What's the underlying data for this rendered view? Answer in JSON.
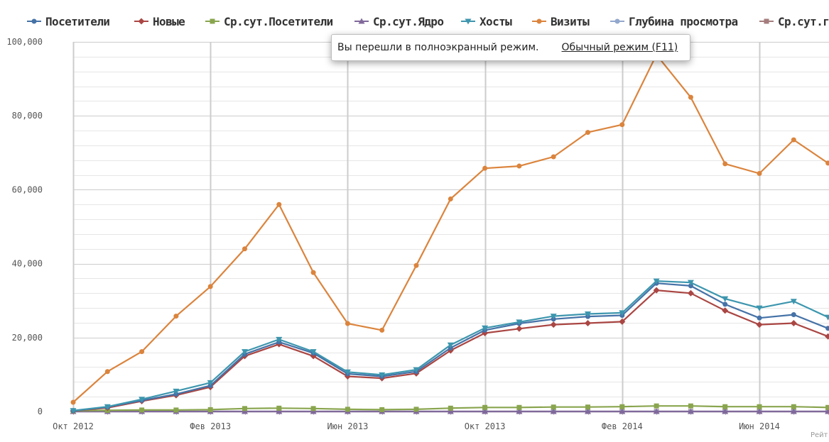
{
  "colors": {
    "background": "#ffffff",
    "grid_major": "#cccccc",
    "grid_minor": "#e6e6e6",
    "axis_text": "#555555"
  },
  "toast": {
    "message": "Вы перешли в полноэкранный режим.",
    "link": "Обычный режим (F11)"
  },
  "credit": "Рейт",
  "chart_data": {
    "type": "line",
    "x": [
      "2012-10",
      "2012-11",
      "2012-12",
      "2013-01",
      "2013-02",
      "2013-03",
      "2013-04",
      "2013-05",
      "2013-06",
      "2013-07",
      "2013-08",
      "2013-09",
      "2013-10",
      "2013-11",
      "2013-12",
      "2014-01",
      "2014-02",
      "2014-03",
      "2014-04",
      "2014-05",
      "2014-06",
      "2014-07",
      "2014-08"
    ],
    "x_tick_labels": [
      {
        "x": "2012-10",
        "label": "Окт 2012"
      },
      {
        "x": "2013-02",
        "label": "Фев 2013"
      },
      {
        "x": "2013-06",
        "label": "Июн 2013"
      },
      {
        "x": "2013-10",
        "label": "Окт 2013"
      },
      {
        "x": "2014-02",
        "label": "Фев 2014"
      },
      {
        "x": "2014-06",
        "label": "Июн 2014"
      }
    ],
    "ylim": [
      0,
      100000
    ],
    "y_tick_labels": [
      "0",
      "20,000",
      "40,000",
      "60,000",
      "80,000",
      "100,000"
    ],
    "grid": true,
    "legend_position": "top",
    "series": [
      {
        "name": "Посетители",
        "color": "#4572A7",
        "marker": "circle",
        "values": [
          200,
          1200,
          3000,
          4700,
          7000,
          15500,
          18800,
          15800,
          10200,
          9500,
          10800,
          17200,
          22000,
          23800,
          25000,
          25700,
          26000,
          34700,
          34000,
          29000,
          25300,
          26200,
          22500
        ]
      },
      {
        "name": "Новые",
        "color": "#AA4643",
        "marker": "diamond",
        "values": [
          150,
          1000,
          2800,
          4400,
          6600,
          15000,
          18200,
          15000,
          9500,
          9000,
          10300,
          16500,
          21200,
          22400,
          23500,
          23900,
          24300,
          32800,
          32000,
          27300,
          23500,
          23900,
          20300
        ]
      },
      {
        "name": "Ср.сут.Посетители",
        "color": "#89A54E",
        "marker": "square",
        "values": [
          200,
          300,
          400,
          400,
          500,
          800,
          900,
          800,
          600,
          500,
          600,
          900,
          1100,
          1100,
          1200,
          1200,
          1300,
          1500,
          1500,
          1300,
          1300,
          1300,
          1100
        ]
      },
      {
        "name": "Ср.сут.Ядро",
        "color": "#80699B",
        "marker": "triangle-up",
        "values": [
          0,
          0,
          0,
          0,
          0,
          0,
          0,
          0,
          0,
          0,
          0,
          0,
          0,
          0,
          0,
          0,
          0,
          0,
          0,
          0,
          0,
          0,
          0
        ]
      },
      {
        "name": "Хосты",
        "color": "#3D96AE",
        "marker": "triangle-down",
        "values": [
          250,
          1300,
          3300,
          5500,
          7800,
          16200,
          19500,
          16200,
          10700,
          9900,
          11300,
          18000,
          22600,
          24200,
          25800,
          26400,
          26700,
          35300,
          34900,
          30500,
          28000,
          29800,
          25500
        ]
      },
      {
        "name": "Визиты",
        "color": "#DB843D",
        "marker": "circle",
        "values": [
          2500,
          10800,
          16200,
          25800,
          33800,
          44000,
          56000,
          37600,
          23800,
          22000,
          39500,
          57500,
          65800,
          66400,
          68900,
          75500,
          77600,
          96500,
          85000,
          67000,
          64400,
          73500,
          67200
        ]
      },
      {
        "name": "Глубина просмотра",
        "color": "#92A8CD",
        "marker": "circle",
        "values": [
          0,
          0,
          0,
          0,
          0,
          0,
          0,
          0,
          0,
          0,
          0,
          0,
          0,
          0,
          0,
          0,
          0,
          0,
          0,
          0,
          0,
          0,
          0
        ]
      },
      {
        "name": "Ср.сут.глубина",
        "legend_text": "Ср.сут.гл",
        "color": "#A47D7C",
        "marker": "square",
        "values": [
          0,
          0,
          0,
          0,
          0,
          0,
          0,
          0,
          0,
          0,
          0,
          0,
          0,
          0,
          0,
          0,
          0,
          0,
          0,
          0,
          0,
          0,
          0
        ]
      }
    ]
  }
}
